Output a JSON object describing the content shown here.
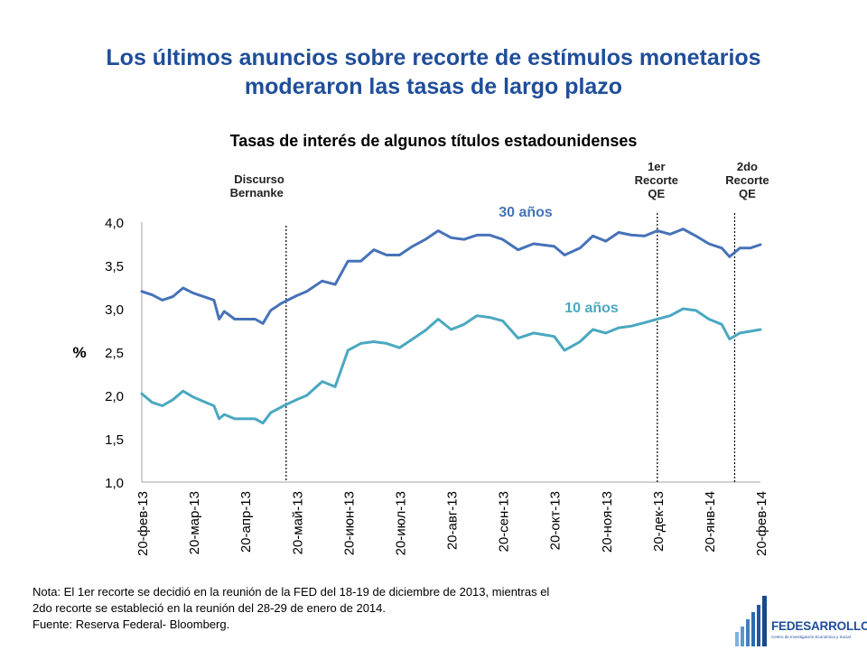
{
  "slide": {
    "title_line1": "Los últimos anuncios sobre recorte de estímulos monetarios",
    "title_line2": "moderaron las tasas de largo plazo"
  },
  "chart_data": {
    "type": "line",
    "title": "Tasas de interés de algunos títulos estadounidenses",
    "ylabel": "%",
    "ylim": [
      1.0,
      4.0
    ],
    "yticks": [
      "1,0",
      "1,5",
      "2,0",
      "2,5",
      "3,0",
      "3,5",
      "4,0"
    ],
    "x_tick_labels": [
      "20-фев-13",
      "20-мар-13",
      "20-апр-13",
      "20-май-13",
      "20-июн-13",
      "20-июл-13",
      "20-авг-13",
      "20-сен-13",
      "20-окт-13",
      "20-ноя-13",
      "20-дек-13",
      "20-янв-14",
      "20-фев-14"
    ],
    "grid": false,
    "legend": "labels next to series",
    "series": [
      {
        "name": "30 años",
        "color": "#4672b8",
        "points": [
          [
            0,
            3.2
          ],
          [
            0.2,
            3.16
          ],
          [
            0.4,
            3.1
          ],
          [
            0.6,
            3.14
          ],
          [
            0.8,
            3.24
          ],
          [
            1.0,
            3.18
          ],
          [
            1.2,
            3.14
          ],
          [
            1.4,
            3.1
          ],
          [
            1.5,
            2.88
          ],
          [
            1.6,
            2.97
          ],
          [
            1.8,
            2.88
          ],
          [
            2.0,
            2.88
          ],
          [
            2.2,
            2.88
          ],
          [
            2.35,
            2.83
          ],
          [
            2.5,
            2.98
          ],
          [
            2.7,
            3.06
          ],
          [
            3.0,
            3.15
          ],
          [
            3.2,
            3.2
          ],
          [
            3.5,
            3.32
          ],
          [
            3.75,
            3.28
          ],
          [
            4.0,
            3.55
          ],
          [
            4.25,
            3.55
          ],
          [
            4.5,
            3.68
          ],
          [
            4.75,
            3.62
          ],
          [
            5.0,
            3.62
          ],
          [
            5.25,
            3.72
          ],
          [
            5.5,
            3.8
          ],
          [
            5.75,
            3.9
          ],
          [
            6.0,
            3.82
          ],
          [
            6.25,
            3.8
          ],
          [
            6.5,
            3.85
          ],
          [
            6.75,
            3.85
          ],
          [
            7.0,
            3.8
          ],
          [
            7.3,
            3.68
          ],
          [
            7.6,
            3.75
          ],
          [
            8.0,
            3.72
          ],
          [
            8.2,
            3.62
          ],
          [
            8.5,
            3.7
          ],
          [
            8.75,
            3.84
          ],
          [
            9.0,
            3.78
          ],
          [
            9.25,
            3.88
          ],
          [
            9.5,
            3.85
          ],
          [
            9.75,
            3.84
          ],
          [
            10.0,
            3.9
          ],
          [
            10.25,
            3.86
          ],
          [
            10.5,
            3.92
          ],
          [
            10.75,
            3.84
          ],
          [
            11.0,
            3.75
          ],
          [
            11.25,
            3.7
          ],
          [
            11.4,
            3.6
          ],
          [
            11.6,
            3.7
          ],
          [
            11.8,
            3.7
          ],
          [
            12.0,
            3.74
          ]
        ]
      },
      {
        "name": "10 años",
        "color": "#4aa8c0",
        "points": [
          [
            0,
            2.02
          ],
          [
            0.2,
            1.92
          ],
          [
            0.4,
            1.88
          ],
          [
            0.6,
            1.95
          ],
          [
            0.8,
            2.05
          ],
          [
            1.0,
            1.98
          ],
          [
            1.2,
            1.93
          ],
          [
            1.4,
            1.88
          ],
          [
            1.5,
            1.73
          ],
          [
            1.6,
            1.78
          ],
          [
            1.8,
            1.73
          ],
          [
            2.0,
            1.73
          ],
          [
            2.2,
            1.73
          ],
          [
            2.35,
            1.68
          ],
          [
            2.5,
            1.8
          ],
          [
            2.75,
            1.88
          ],
          [
            3.0,
            1.95
          ],
          [
            3.2,
            2.0
          ],
          [
            3.5,
            2.16
          ],
          [
            3.75,
            2.1
          ],
          [
            4.0,
            2.52
          ],
          [
            4.25,
            2.6
          ],
          [
            4.5,
            2.62
          ],
          [
            4.75,
            2.6
          ],
          [
            5.0,
            2.55
          ],
          [
            5.25,
            2.65
          ],
          [
            5.5,
            2.75
          ],
          [
            5.75,
            2.88
          ],
          [
            6.0,
            2.76
          ],
          [
            6.25,
            2.82
          ],
          [
            6.5,
            2.92
          ],
          [
            6.75,
            2.9
          ],
          [
            7.0,
            2.86
          ],
          [
            7.3,
            2.66
          ],
          [
            7.6,
            2.72
          ],
          [
            8.0,
            2.68
          ],
          [
            8.2,
            2.52
          ],
          [
            8.5,
            2.62
          ],
          [
            8.75,
            2.76
          ],
          [
            9.0,
            2.72
          ],
          [
            9.25,
            2.78
          ],
          [
            9.5,
            2.8
          ],
          [
            9.75,
            2.84
          ],
          [
            10.0,
            2.88
          ],
          [
            10.25,
            2.92
          ],
          [
            10.5,
            3.0
          ],
          [
            10.75,
            2.98
          ],
          [
            11.0,
            2.88
          ],
          [
            11.25,
            2.82
          ],
          [
            11.4,
            2.65
          ],
          [
            11.6,
            2.72
          ],
          [
            11.8,
            2.74
          ],
          [
            12.0,
            2.76
          ]
        ]
      }
    ],
    "annotations": [
      {
        "id": "bernanke",
        "lines": [
          "Discurso",
          "Bernanke"
        ],
        "x": 2.8
      },
      {
        "id": "recorte1",
        "lines": [
          "1er",
          "Recorte",
          "QE"
        ],
        "x": 10.0
      },
      {
        "id": "recorte2",
        "lines": [
          "2do",
          "Recorte",
          "QE"
        ],
        "x": 11.5
      }
    ]
  },
  "note": {
    "line1": "Nota: El 1er recorte se decidió en la reunión de la FED del 18-19 de diciembre de 2013, mientras el",
    "line2": "2do recorte se estableció en la reunión del 28-29 de enero de 2014.",
    "line3": "Fuente: Reserva Federal- Bloomberg."
  },
  "logo": {
    "name": "FEDESARROLLO",
    "tagline": "Centro de Investigación Económica y Social"
  }
}
